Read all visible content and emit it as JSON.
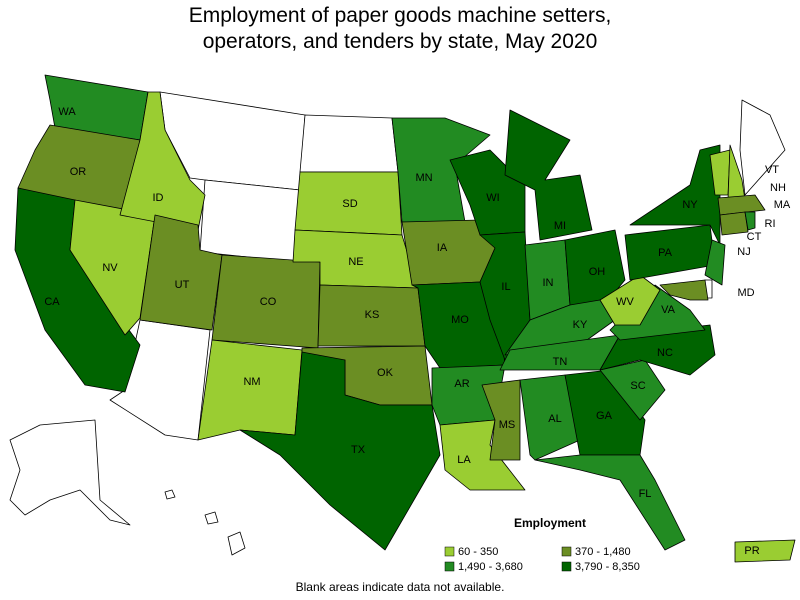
{
  "title_lines": [
    "Employment of paper goods machine setters,",
    "operators, and tenders by state, May 2020"
  ],
  "legend": {
    "title": "Employment",
    "items": [
      {
        "label": "60 - 350",
        "color": "#9acd32"
      },
      {
        "label": "370 - 1,480",
        "color": "#6b8e23"
      },
      {
        "label": "1,490 - 3,680",
        "color": "#228b22"
      },
      {
        "label": "3,790 - 8,350",
        "color": "#006400"
      }
    ]
  },
  "note": "Blank areas indicate data not available.",
  "states": [
    {
      "abbr": "WA",
      "color": "#228b22"
    },
    {
      "abbr": "OR",
      "color": "#6b8e23"
    },
    {
      "abbr": "CA",
      "color": "#006400"
    },
    {
      "abbr": "NV",
      "color": "#9acd32"
    },
    {
      "abbr": "ID",
      "color": "#9acd32"
    },
    {
      "abbr": "UT",
      "color": "#6b8e23"
    },
    {
      "abbr": "CO",
      "color": "#6b8e23"
    },
    {
      "abbr": "NM",
      "color": "#9acd32"
    },
    {
      "abbr": "SD",
      "color": "#9acd32"
    },
    {
      "abbr": "NE",
      "color": "#9acd32"
    },
    {
      "abbr": "KS",
      "color": "#6b8e23"
    },
    {
      "abbr": "OK",
      "color": "#6b8e23"
    },
    {
      "abbr": "TX",
      "color": "#006400"
    },
    {
      "abbr": "MN",
      "color": "#228b22"
    },
    {
      "abbr": "IA",
      "color": "#6b8e23"
    },
    {
      "abbr": "MO",
      "color": "#006400"
    },
    {
      "abbr": "AR",
      "color": "#228b22"
    },
    {
      "abbr": "LA",
      "color": "#9acd32"
    },
    {
      "abbr": "WI",
      "color": "#006400"
    },
    {
      "abbr": "IL",
      "color": "#006400"
    },
    {
      "abbr": "MI",
      "color": "#006400"
    },
    {
      "abbr": "IN",
      "color": "#228b22"
    },
    {
      "abbr": "OH",
      "color": "#006400"
    },
    {
      "abbr": "KY",
      "color": "#228b22"
    },
    {
      "abbr": "TN",
      "color": "#228b22"
    },
    {
      "abbr": "MS",
      "color": "#6b8e23"
    },
    {
      "abbr": "AL",
      "color": "#228b22"
    },
    {
      "abbr": "GA",
      "color": "#006400"
    },
    {
      "abbr": "FL",
      "color": "#228b22"
    },
    {
      "abbr": "SC",
      "color": "#228b22"
    },
    {
      "abbr": "NC",
      "color": "#006400"
    },
    {
      "abbr": "VA",
      "color": "#228b22"
    },
    {
      "abbr": "WV",
      "color": "#9acd32"
    },
    {
      "abbr": "PA",
      "color": "#006400"
    },
    {
      "abbr": "NY",
      "color": "#006400"
    },
    {
      "abbr": "VT",
      "color": "#9acd32"
    },
    {
      "abbr": "NH",
      "color": "#9acd32"
    },
    {
      "abbr": "MA",
      "color": "#6b8e23"
    },
    {
      "abbr": "CT",
      "color": "#6b8e23"
    },
    {
      "abbr": "RI",
      "color": "#228b22"
    },
    {
      "abbr": "NJ",
      "color": "#228b22"
    },
    {
      "abbr": "MD",
      "color": "#6b8e23"
    },
    {
      "abbr": "PR",
      "color": "#9acd32"
    }
  ]
}
